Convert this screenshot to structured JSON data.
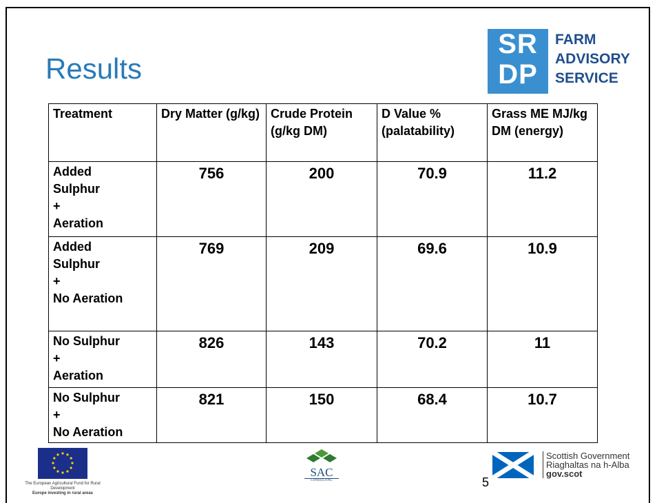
{
  "header": {
    "title": "Results",
    "logo": {
      "mark": [
        "SR",
        "DP"
      ],
      "lines": [
        "FARM",
        "ADVISORY",
        "SERVICE"
      ]
    }
  },
  "table": {
    "columns": [
      "Treatment",
      "Dry Matter (g/kg)",
      "Crude Protein (g/kg DM)",
      "D Value % (palatability)",
      "Grass ME MJ/kg DM (energy)"
    ],
    "rows": [
      {
        "treatment": [
          "Added",
          "Sulphur",
          "+",
          "Aeration"
        ],
        "values": [
          756,
          200,
          70.9,
          11.2
        ]
      },
      {
        "treatment": [
          "Added",
          "Sulphur",
          "+",
          "No Aeration"
        ],
        "values": [
          769,
          209,
          69.6,
          10.9
        ]
      },
      {
        "treatment": [
          "No Sulphur",
          "+",
          "Aeration"
        ],
        "values": [
          826,
          143,
          70.2,
          11
        ]
      },
      {
        "treatment": [
          "No Sulphur",
          "+",
          "No Aeration"
        ],
        "values": [
          821,
          150,
          68.4,
          10.7
        ]
      }
    ]
  },
  "footer": {
    "eu": [
      "The European Agricultural Fund for Rural Development",
      "Europe investing in rural areas"
    ],
    "sac": [
      "SAC",
      "CONSULTING"
    ],
    "sg": [
      "Scottish Government",
      "Riaghaltas na h-Alba",
      "gov.scot"
    ],
    "page": "5"
  }
}
